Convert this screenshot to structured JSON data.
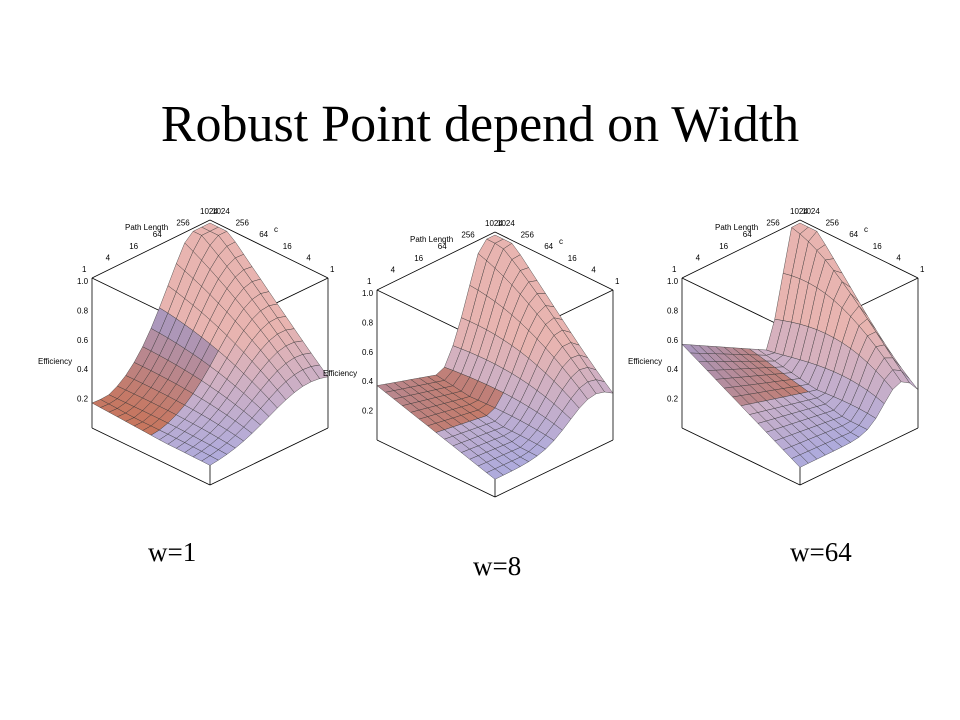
{
  "title": "Robust Point depend on Width",
  "chart_data": [
    {
      "type": "surface3d",
      "caption": "w=1",
      "width": 1,
      "xlabel": "Path Length",
      "ylabel": "c",
      "zlabel": "Efficiency",
      "x_ticks": [
        "1",
        "4",
        "16",
        "64",
        "256",
        "1024"
      ],
      "y_ticks": [
        "1024",
        "256",
        "64",
        "16",
        "4",
        "1"
      ],
      "z_ticks": [
        "0.2",
        "0.4",
        "0.6",
        "0.8",
        "1.0"
      ],
      "zlim": [
        0,
        1
      ]
    },
    {
      "type": "surface3d",
      "caption": "w=8",
      "width": 8,
      "xlabel": "Path Length",
      "ylabel": "c",
      "zlabel": "Efficiency",
      "x_ticks": [
        "1",
        "4",
        "16",
        "64",
        "256",
        "1024"
      ],
      "y_ticks": [
        "1024",
        "256",
        "64",
        "16",
        "4",
        "1"
      ],
      "z_ticks": [
        "0.2",
        "0.4",
        "0.6",
        "0.8",
        "1.0"
      ],
      "zlim": [
        0,
        1
      ]
    },
    {
      "type": "surface3d",
      "caption": "w=64",
      "width": 64,
      "xlabel": "Path Length",
      "ylabel": "c",
      "zlabel": "Efficiency",
      "x_ticks": [
        "1",
        "4",
        "16",
        "64",
        "256",
        "1024"
      ],
      "y_ticks": [
        "1024",
        "256",
        "64",
        "16",
        "4",
        "1"
      ],
      "z_ticks": [
        "0.2",
        "0.4",
        "0.6",
        "0.8",
        "1.0"
      ],
      "zlim": [
        0,
        1
      ]
    }
  ],
  "colors": {
    "surface_warm": "#e8b4b0",
    "surface_cool": "#9fa8e8",
    "surface_low": "#d2693a",
    "line": "#000000"
  }
}
